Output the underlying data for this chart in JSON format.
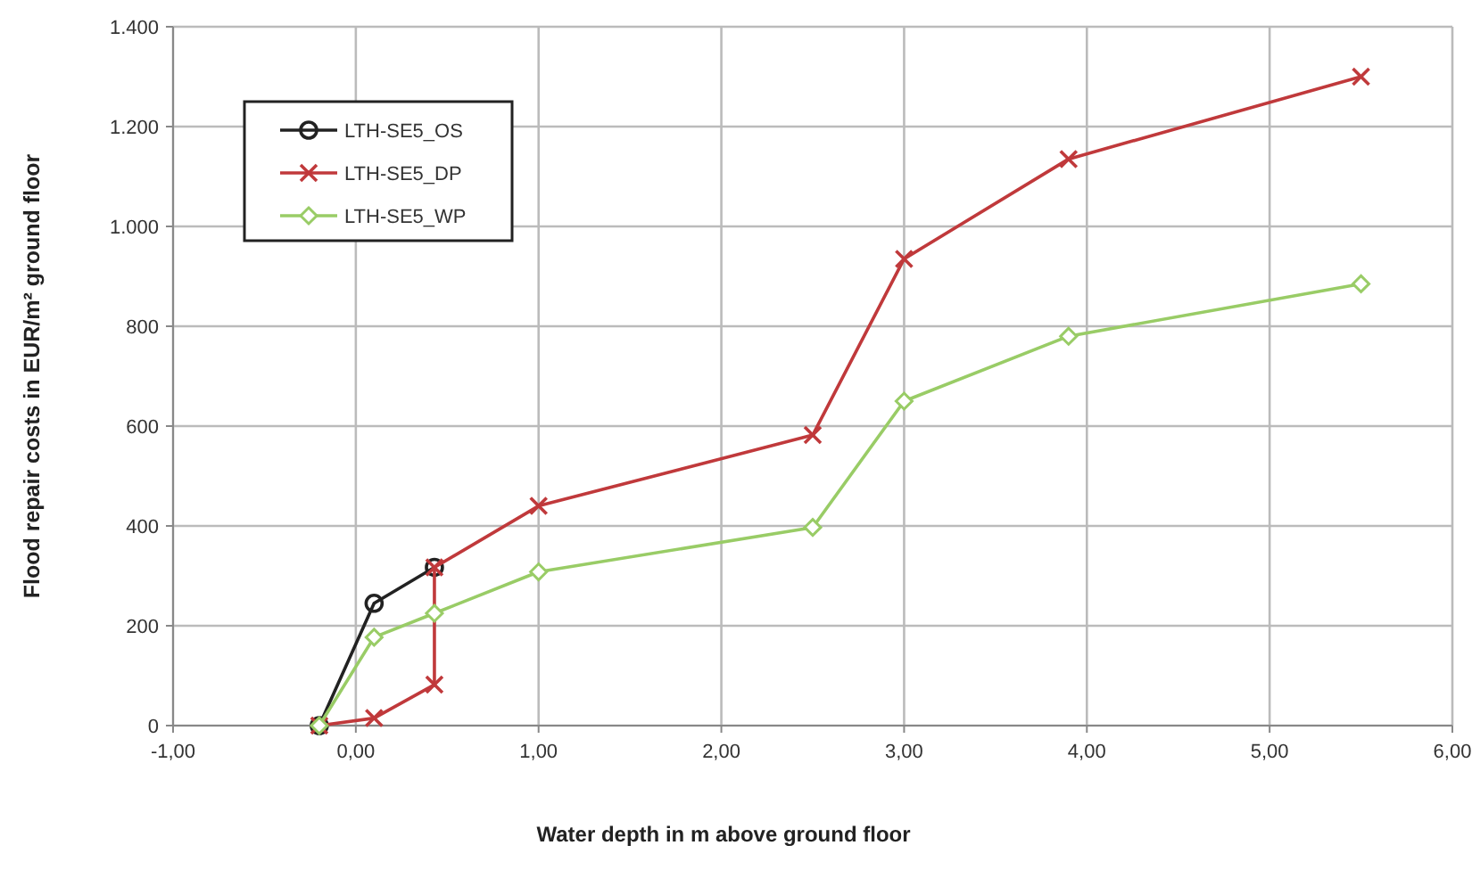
{
  "chart_data": {
    "type": "line",
    "xlabel": "Water depth in m above ground floor",
    "ylabel": "Flood repair costs in EUR/m² ground floor",
    "xlim": [
      -1,
      6
    ],
    "xticks": [
      {
        "value": -1,
        "label": "-1,00"
      },
      {
        "value": 0,
        "label": "0,00"
      },
      {
        "value": 1,
        "label": "1,00"
      },
      {
        "value": 2,
        "label": "2,00"
      },
      {
        "value": 3,
        "label": "3,00"
      },
      {
        "value": 4,
        "label": "4,00"
      },
      {
        "value": 5,
        "label": "5,00"
      },
      {
        "value": 6,
        "label": "6,00"
      }
    ],
    "ylim": [
      0,
      1400
    ],
    "yticks": [
      0,
      200,
      400,
      600,
      800,
      {
        "value": 1000,
        "label": "1.000"
      },
      {
        "value": 1200,
        "label": "1.200"
      },
      {
        "value": 1400,
        "label": "1.400"
      }
    ],
    "grid": true,
    "legend": "top left",
    "series": [
      {
        "name": "LTH-SE5_OS",
        "color": "#222222",
        "marker": "circle",
        "x": [
          -0.2,
          0.1,
          0.43
        ],
        "values": [
          0,
          245,
          317
        ]
      },
      {
        "name": "LTH-SE5_DP",
        "color": "#c0393b",
        "marker": "cross",
        "x": [
          -0.2,
          0.1,
          0.43,
          0.43,
          1.0,
          2.5,
          3.0,
          3.9,
          5.5
        ],
        "values": [
          0,
          15,
          82,
          317,
          440,
          582,
          935,
          1135,
          1300
        ]
      },
      {
        "name": "LTH-SE5_WP",
        "color": "#99cc66",
        "marker": "diamond",
        "x": [
          -0.2,
          0.1,
          0.43,
          1.0,
          2.5,
          3.0,
          3.9,
          5.5
        ],
        "values": [
          0,
          177,
          225,
          308,
          397,
          650,
          780,
          885
        ]
      }
    ]
  }
}
